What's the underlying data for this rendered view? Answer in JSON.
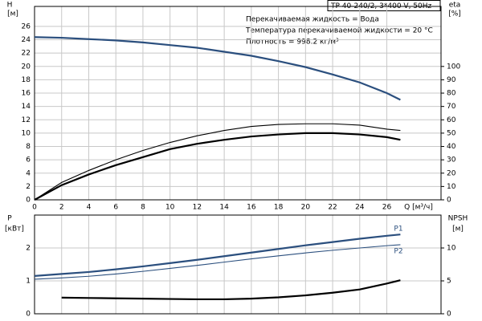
{
  "chart_data": [
    {
      "type": "line",
      "ylabel": "H",
      "yunit": "[м]",
      "y2label": "eta",
      "y2unit": "[%]",
      "xlabel": "Q [м³/ч]",
      "box_title": "TP 40-240/2, 3*400 V, 50Hz",
      "info": [
        "Перекачиваемая жидкость = Вода",
        "Температура перекачиваемой жидкости = 20 °C",
        "Плотность = 998.2 кг/м³"
      ],
      "x": [
        0,
        2,
        4,
        6,
        8,
        10,
        12,
        14,
        16,
        18,
        20,
        22,
        24,
        26,
        27
      ],
      "xlim": [
        0,
        30
      ],
      "xticks": [
        0,
        2,
        4,
        6,
        8,
        10,
        12,
        14,
        16,
        18,
        20,
        22,
        24,
        26
      ],
      "ylim": [
        0,
        29
      ],
      "yticks": [
        0,
        2,
        4,
        6,
        8,
        10,
        12,
        14,
        16,
        18,
        20,
        22,
        24,
        26
      ],
      "y2lim": [
        0,
        145
      ],
      "y2ticks": [
        0,
        10,
        20,
        30,
        40,
        50,
        60,
        70,
        80,
        90,
        100
      ],
      "grid": true,
      "series": [
        {
          "color": "#2b4f7e",
          "style": "thick",
          "axis": "y",
          "values": [
            24.4,
            24.3,
            24.1,
            23.9,
            23.6,
            23.2,
            22.8,
            22.2,
            21.6,
            20.8,
            19.9,
            18.8,
            17.6,
            16.0,
            15.0
          ]
        },
        {
          "color": "#000000",
          "style": "thin",
          "axis": "y2",
          "values": [
            0,
            13,
            22,
            30,
            37,
            43,
            48,
            52,
            55,
            56.5,
            57,
            57,
            56,
            53,
            52
          ]
        },
        {
          "color": "#000000",
          "style": "thick",
          "axis": "y2",
          "values": [
            0,
            11,
            19,
            26,
            32,
            38,
            42,
            45,
            47.5,
            49,
            50,
            50,
            49,
            47,
            45
          ]
        }
      ]
    },
    {
      "type": "line",
      "ylabel": "P",
      "yunit": "[кВт]",
      "y2label": "NPSH",
      "y2unit": "[м]",
      "x": [
        0,
        2,
        4,
        6,
        8,
        10,
        12,
        14,
        16,
        18,
        20,
        22,
        24,
        26,
        27
      ],
      "xlim": [
        0,
        30
      ],
      "ylim": [
        0,
        3
      ],
      "yticks": [
        0,
        1,
        2
      ],
      "y2lim": [
        0,
        15
      ],
      "y2ticks": [
        0,
        5,
        10
      ],
      "grid": true,
      "series": [
        {
          "name": "P1",
          "color": "#2b4f7e",
          "style": "thick",
          "axis": "y",
          "values": [
            1.15,
            1.21,
            1.27,
            1.35,
            1.44,
            1.54,
            1.64,
            1.75,
            1.86,
            1.97,
            2.08,
            2.18,
            2.28,
            2.37,
            2.41
          ]
        },
        {
          "name": "P2",
          "color": "#2b4f7e",
          "style": "thin",
          "axis": "y",
          "values": [
            1.05,
            1.09,
            1.14,
            1.21,
            1.29,
            1.38,
            1.47,
            1.57,
            1.67,
            1.76,
            1.85,
            1.93,
            2.0,
            2.07,
            2.1
          ]
        },
        {
          "color": "#000000",
          "style": "thick",
          "axis": "y2",
          "values": [
            null,
            2.45,
            2.4,
            2.35,
            2.3,
            2.25,
            2.2,
            2.2,
            2.3,
            2.5,
            2.8,
            3.2,
            3.7,
            4.6,
            5.1
          ]
        }
      ]
    }
  ]
}
